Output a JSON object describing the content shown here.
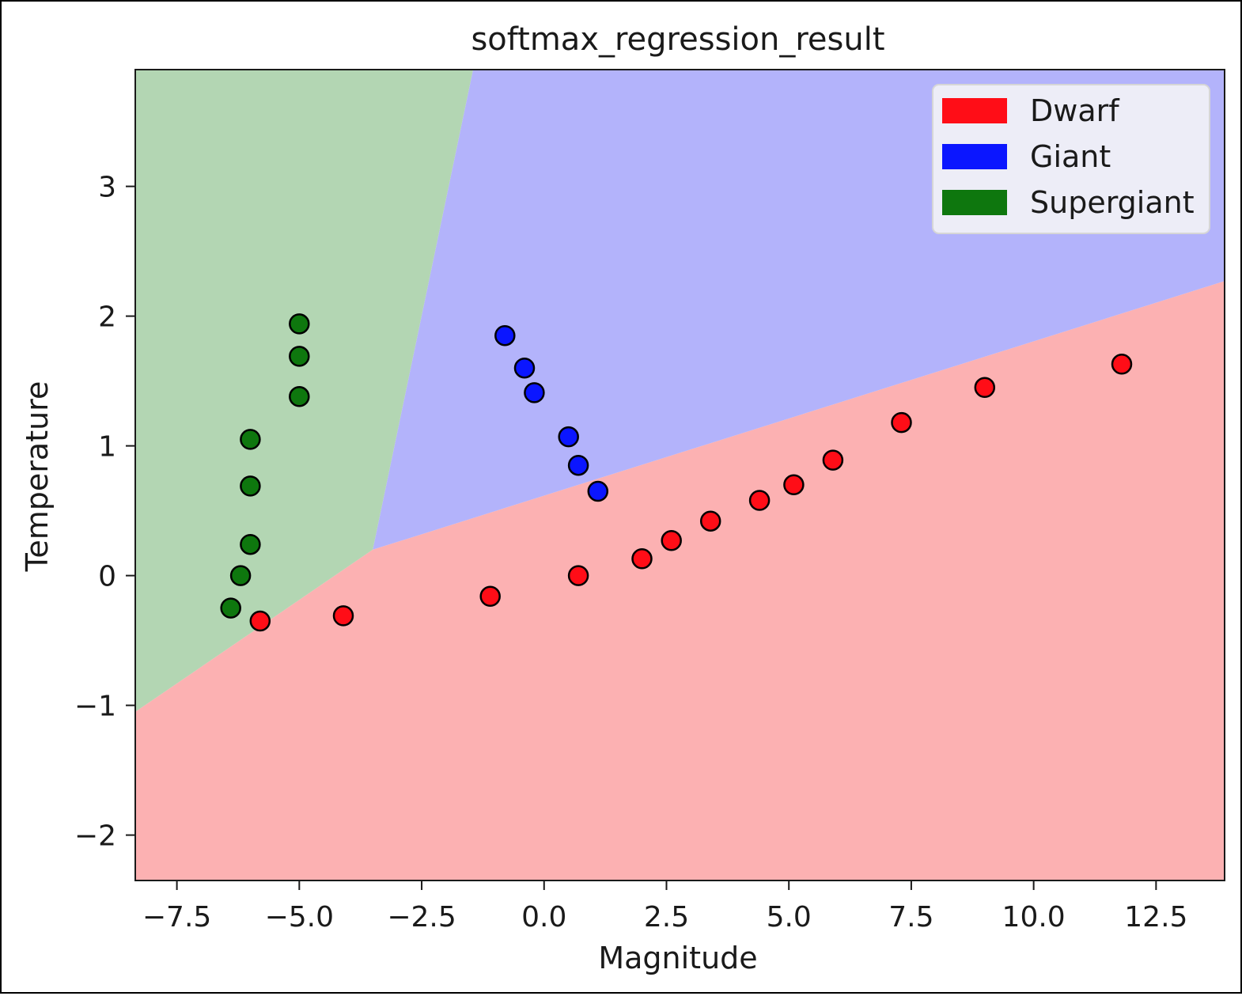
{
  "chart_data": {
    "type": "scatter",
    "title": "softmax_regression_result",
    "xlabel": "Magnitude",
    "ylabel": "Temperature",
    "xlim": [
      -8.35,
      13.9
    ],
    "ylim": [
      -2.35,
      3.9
    ],
    "grid": false,
    "legend_position": "top-right",
    "xticks": [
      {
        "value": -7.5,
        "label": "−7.5"
      },
      {
        "value": -5.0,
        "label": "−5.0"
      },
      {
        "value": -2.5,
        "label": "−2.5"
      },
      {
        "value": 0.0,
        "label": "0.0"
      },
      {
        "value": 2.5,
        "label": "2.5"
      },
      {
        "value": 5.0,
        "label": "5.0"
      },
      {
        "value": 7.5,
        "label": "7.5"
      },
      {
        "value": 10.0,
        "label": "10.0"
      },
      {
        "value": 12.5,
        "label": "12.5"
      }
    ],
    "yticks": [
      {
        "value": -2,
        "label": "−2"
      },
      {
        "value": -1,
        "label": "−1"
      },
      {
        "value": 0,
        "label": "0"
      },
      {
        "value": 1,
        "label": "1"
      },
      {
        "value": 2,
        "label": "2"
      },
      {
        "value": 3,
        "label": "3"
      }
    ],
    "decision_regions": [
      {
        "class": "Dwarf",
        "color": "#fcb1b2",
        "polygon": [
          [
            -8.35,
            -2.35
          ],
          [
            13.9,
            -2.35
          ],
          [
            13.9,
            2.27
          ],
          [
            -3.5,
            0.2
          ],
          [
            -8.35,
            -1.05
          ]
        ]
      },
      {
        "class": "Giant",
        "color": "#b3b3fb",
        "polygon": [
          [
            -1.45,
            3.9
          ],
          [
            13.9,
            3.9
          ],
          [
            13.9,
            2.27
          ],
          [
            -3.5,
            0.2
          ]
        ]
      },
      {
        "class": "Supergiant",
        "color": "#b3d6b3",
        "polygon": [
          [
            -8.35,
            3.9
          ],
          [
            -1.45,
            3.9
          ],
          [
            -3.5,
            0.2
          ],
          [
            -8.35,
            -1.05
          ]
        ]
      }
    ],
    "series": [
      {
        "name": "Dwarf",
        "color": "#ff0d17",
        "points": [
          [
            -5.8,
            -0.35
          ],
          [
            -4.1,
            -0.31
          ],
          [
            -1.1,
            -0.16
          ],
          [
            0.7,
            0.0
          ],
          [
            2.0,
            0.13
          ],
          [
            2.6,
            0.27
          ],
          [
            3.4,
            0.42
          ],
          [
            4.4,
            0.58
          ],
          [
            5.1,
            0.7
          ],
          [
            5.9,
            0.89
          ],
          [
            7.3,
            1.18
          ],
          [
            9.0,
            1.45
          ],
          [
            11.8,
            1.63
          ]
        ]
      },
      {
        "name": "Giant",
        "color": "#0b16ff",
        "points": [
          [
            -0.8,
            1.85
          ],
          [
            -0.4,
            1.6
          ],
          [
            -0.2,
            1.41
          ],
          [
            0.5,
            1.07
          ],
          [
            0.7,
            0.85
          ],
          [
            1.1,
            0.65
          ]
        ]
      },
      {
        "name": "Supergiant",
        "color": "#0e770e",
        "points": [
          [
            -5.0,
            1.94
          ],
          [
            -5.0,
            1.69
          ],
          [
            -5.0,
            1.38
          ],
          [
            -6.0,
            1.05
          ],
          [
            -6.0,
            0.69
          ],
          [
            -6.0,
            0.24
          ],
          [
            -6.2,
            0.0
          ],
          [
            -6.4,
            -0.25
          ]
        ]
      }
    ]
  }
}
